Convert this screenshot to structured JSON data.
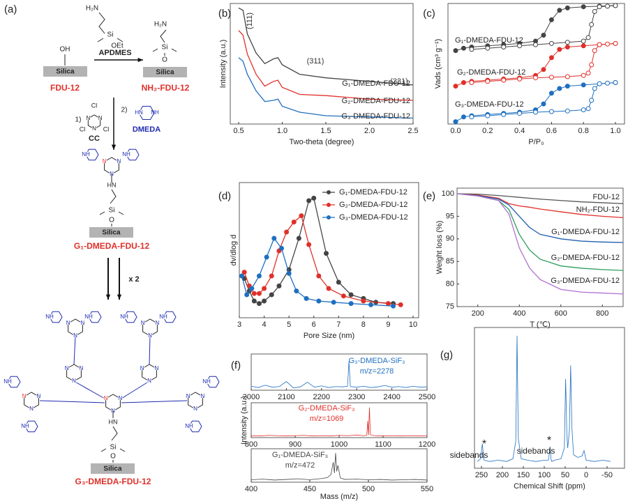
{
  "scheme": {
    "panel_label": "(a)",
    "silica": "Silica",
    "oh": "OH",
    "h2n": "H₂N",
    "si": "Si",
    "oet": "OEt",
    "o": "O",
    "apdmes": "APDMES",
    "fdu12": "FDU-12",
    "nh2_fdu12": "NH₂-FDU-12",
    "step1": "1)",
    "step2": "2)",
    "cl": "Cl",
    "n": "N",
    "cc": "CC",
    "hn": "HN",
    "nh": "NH",
    "dmeda": "DMEDA",
    "g1": "G₁-DMEDA-FDU-12",
    "times2": "x 2",
    "g3": "G₃-DMEDA-FDU-12"
  },
  "chart_data": [
    {
      "type": "line",
      "panel_label": "(b)",
      "xlabel": "Two-theta (degree)",
      "ylabel": "Intensity (a.u.)",
      "annotations": [
        "(111)",
        "(311)",
        "(331)"
      ],
      "x": [
        0.5,
        0.55,
        0.6,
        0.7,
        0.8,
        0.9,
        0.95,
        1.0,
        1.2,
        1.5,
        2.0,
        2.5
      ],
      "xlim": [
        0.5,
        2.5
      ],
      "ylim": [
        0,
        10
      ],
      "xticks": [
        0.5,
        {
          "value": 1,
          "label": "1.0"
        },
        1.5,
        {
          "value": 2,
          "label": "2.0"
        },
        2.5
      ],
      "series": [
        {
          "name": "G₁-DMEDA-FDU-12",
          "color": "#444444",
          "values": [
            9.8,
            9.6,
            7.6,
            6.0,
            5.1,
            5.5,
            5.6,
            5.0,
            4.2,
            3.9,
            3.6,
            3.3
          ]
        },
        {
          "name": "G₂-DMEDA-FDU-12",
          "color": "#e0302a",
          "values": [
            7.9,
            7.5,
            5.9,
            4.2,
            3.2,
            3.6,
            3.7,
            3.1,
            2.5,
            2.4,
            2.1,
            2.0
          ]
        },
        {
          "name": "G₃-DMEDA-FDU-12",
          "color": "#1f6fc0",
          "values": [
            5.6,
            5.3,
            4.2,
            2.8,
            1.9,
            2.0,
            2.1,
            1.5,
            1.0,
            0.7,
            0.6,
            0.5
          ]
        }
      ]
    },
    {
      "type": "isotherm",
      "panel_label": "(c)",
      "xlabel": "P/P₀",
      "ylabel": "Vads (cm³ g⁻¹)",
      "x": [
        0.0,
        0.05,
        0.1,
        0.2,
        0.3,
        0.4,
        0.5,
        0.55,
        0.6,
        0.65,
        0.7,
        0.8,
        0.9,
        1.0
      ],
      "desorption_x": [
        1.0,
        0.95,
        0.9,
        0.87,
        0.85,
        0.83,
        0.8,
        0.7,
        0.6,
        0.5,
        0.4,
        0.3,
        0.2,
        0.1
      ],
      "xlim": [
        0,
        1
      ],
      "ylim": [
        0,
        10
      ],
      "xticks": [
        {
          "value": 0,
          "label": "0.0"
        },
        0.2,
        0.4,
        0.6,
        0.8,
        {
          "value": 1,
          "label": "1.0"
        }
      ],
      "series": [
        {
          "name": "G₁-DMEDA-FDU-12",
          "color": "#444444",
          "values": [
            6.2,
            6.4,
            6.5,
            6.6,
            6.7,
            6.8,
            7.0,
            7.5,
            8.8,
            9.6,
            9.8,
            9.9,
            9.95,
            10.0
          ],
          "desorption_values": [
            10.0,
            9.95,
            9.9,
            9.5,
            8.4,
            7.3,
            7.0,
            6.9,
            6.8,
            6.7,
            6.6,
            6.5,
            6.4,
            6.3
          ]
        },
        {
          "name": "G₂-DMEDA-FDU-12",
          "color": "#e0302a",
          "values": [
            3.2,
            3.5,
            3.6,
            3.7,
            3.8,
            3.9,
            4.1,
            4.6,
            5.6,
            6.3,
            6.5,
            6.6,
            6.7,
            6.8
          ],
          "desorption_values": [
            6.8,
            6.75,
            6.7,
            6.2,
            5.0,
            4.3,
            4.1,
            4.0,
            3.95,
            3.9,
            3.8,
            3.7,
            3.6,
            3.5
          ]
        },
        {
          "name": "G₃-DMEDA-FDU-12",
          "color": "#1f6fc0",
          "values": [
            0.2,
            0.6,
            0.7,
            0.8,
            0.9,
            1.0,
            1.2,
            1.7,
            2.6,
            3.0,
            3.2,
            3.3,
            3.4,
            3.5
          ],
          "desorption_values": [
            3.5,
            3.45,
            3.4,
            3.0,
            2.0,
            1.3,
            1.2,
            1.1,
            1.05,
            1.0,
            0.9,
            0.8,
            0.7,
            0.6
          ]
        }
      ]
    },
    {
      "type": "line",
      "markers": true,
      "panel_label": "(d)",
      "xlabel": "Pore Size (nm)",
      "ylabel": "dv/dlog d",
      "xlim": [
        3,
        10
      ],
      "ylim": [
        0,
        10
      ],
      "xticks": [
        3,
        4,
        5,
        6,
        7,
        8,
        9,
        10
      ],
      "series": [
        {
          "name": "G₁-DMEDA-FDU-12",
          "color": "#444444",
          "x": [
            3.2,
            3.4,
            3.6,
            3.8,
            4.0,
            4.3,
            4.6,
            5.0,
            5.4,
            5.8,
            6.0,
            6.5,
            7.0,
            7.5,
            8.0,
            8.5,
            9.2
          ],
          "values": [
            2.8,
            1.8,
            1.0,
            0.8,
            1.0,
            1.5,
            2.2,
            3.5,
            6.0,
            9.0,
            9.2,
            4.8,
            2.5,
            1.5,
            1.2,
            0.9,
            0.8
          ]
        },
        {
          "name": "G₂-DMEDA-FDU-12",
          "color": "#e0302a",
          "x": [
            3.2,
            3.4,
            3.6,
            3.8,
            4.0,
            4.3,
            4.6,
            4.9,
            5.2,
            5.5,
            5.8,
            6.2,
            6.6,
            7.2,
            8.0,
            9.0,
            9.5
          ],
          "values": [
            3.3,
            2.2,
            1.6,
            1.6,
            2.0,
            3.0,
            5.0,
            6.5,
            7.3,
            7.8,
            5.5,
            3.0,
            2.0,
            1.4,
            1.0,
            0.8,
            0.7
          ]
        },
        {
          "name": "G₃-DMEDA-FDU-12",
          "color": "#1f6fc0",
          "x": [
            3.1,
            3.3,
            3.5,
            3.8,
            4.1,
            4.4,
            4.7,
            5.0,
            5.3,
            5.7,
            6.2,
            6.8,
            7.5,
            8.3,
            9.2
          ],
          "values": [
            3.0,
            1.5,
            2.0,
            3.0,
            4.5,
            6.0,
            5.2,
            3.2,
            1.8,
            1.2,
            1.0,
            0.9,
            0.8,
            0.7,
            0.6
          ]
        }
      ]
    },
    {
      "type": "line",
      "panel_label": "(e)",
      "xlabel": "T (℃)",
      "ylabel": "Weight loss (%)",
      "x": [
        100,
        200,
        300,
        350,
        400,
        450,
        500,
        600,
        700,
        800,
        900
      ],
      "xlim": [
        100,
        900
      ],
      "ylim": [
        75,
        100
      ],
      "xticks": [
        200,
        400,
        600,
        800
      ],
      "yticks": [
        75,
        80,
        85,
        90,
        95,
        100
      ],
      "series": [
        {
          "name": "FDU-12",
          "color": "#555555",
          "values": [
            100,
            99.9,
            99.6,
            99.4,
            99.2,
            99.0,
            98.8,
            98.5,
            98.2,
            98.0,
            97.8
          ]
        },
        {
          "name": "NH₂-FDU-12",
          "color": "#e0302a",
          "values": [
            100,
            99.7,
            99.0,
            97.8,
            97.3,
            97.0,
            96.6,
            96.0,
            95.4,
            95.0,
            94.7
          ]
        },
        {
          "name": "G₁-DMEDA-FDU-12",
          "color": "#1f5fb0",
          "values": [
            100,
            99.6,
            98.8,
            97.5,
            95.0,
            92.5,
            91.0,
            90.0,
            89.5,
            89.3,
            89.2
          ]
        },
        {
          "name": "G₂-DMEDA-FDU-12",
          "color": "#2a9d5c",
          "values": [
            100,
            99.5,
            98.5,
            96.5,
            91.0,
            87.5,
            85.5,
            84.0,
            83.5,
            83.2,
            83.0
          ]
        },
        {
          "name": "G₃-DMEDA-FDU-12",
          "color": "#b070d0",
          "values": [
            100,
            99.5,
            98.5,
            95.5,
            88.0,
            83.5,
            81.0,
            78.8,
            78.2,
            78.0,
            77.8
          ]
        }
      ]
    },
    {
      "type": "line",
      "panel_label": "(f)",
      "annotations": [
        "G₃-DMEDA-SiF₃",
        "m/z=2278"
      ],
      "x": [
        2000,
        2020,
        2040,
        2060,
        2080,
        2100,
        2120,
        2140,
        2160,
        2180,
        2200,
        2220,
        2240,
        2260,
        2274,
        2278,
        2282,
        2300,
        2320,
        2340,
        2360,
        2380,
        2400,
        2420,
        2440,
        2460,
        2480,
        2500
      ],
      "xlim": [
        2000,
        2500
      ],
      "ylim": [
        0,
        10
      ],
      "xticks": [
        2000,
        2100,
        2200,
        2300,
        2400,
        2500
      ],
      "series": [
        {
          "color": "#1f6fc0",
          "values": [
            1.2,
            0.8,
            1.5,
            0.9,
            1.1,
            2.6,
            0.7,
            1.0,
            2.4,
            0.9,
            1.3,
            0.8,
            1.1,
            1.0,
            1.2,
            8.6,
            1.1,
            0.9,
            1.2,
            0.8,
            1.0,
            1.4,
            0.9,
            1.1,
            0.8,
            1.2,
            0.9,
            1.0
          ]
        }
      ]
    },
    {
      "type": "line",
      "ylabel": "Intensity (a.u.)",
      "annotations": [
        "G₂-DMEDA-SiF₃",
        "m/z=1069"
      ],
      "x": [
        800,
        820,
        840,
        860,
        880,
        900,
        920,
        940,
        960,
        980,
        1000,
        1020,
        1040,
        1055,
        1063,
        1065,
        1067,
        1069,
        1071,
        1080,
        1100,
        1120,
        1140,
        1160,
        1180,
        1200
      ],
      "xlim": [
        800,
        1200
      ],
      "ylim": [
        0,
        10
      ],
      "xticks": [
        800,
        900,
        1000,
        1100,
        1200
      ],
      "series": [
        {
          "color": "#e0302a",
          "values": [
            0.6,
            0.5,
            0.7,
            0.6,
            0.5,
            0.6,
            0.7,
            0.5,
            0.6,
            0.5,
            0.7,
            0.6,
            0.8,
            0.6,
            0.7,
            5.2,
            0.8,
            9.4,
            0.9,
            0.6,
            0.5,
            0.6,
            0.5,
            0.6,
            0.5,
            0.6
          ]
        }
      ]
    },
    {
      "type": "line",
      "xlabel": "Mass (m/z)",
      "annotations": [
        "G₁-DMEDA-SiF₃",
        "m/z=472"
      ],
      "x": [
        400,
        410,
        420,
        430,
        440,
        450,
        460,
        465,
        468,
        470,
        471,
        472,
        473,
        474,
        476,
        480,
        490,
        500,
        510,
        520,
        530,
        540,
        550
      ],
      "xlim": [
        400,
        550
      ],
      "ylim": [
        0,
        10
      ],
      "xticks": [
        400,
        450,
        500,
        550
      ],
      "series": [
        {
          "color": "#444444",
          "values": [
            0.8,
            1.0,
            0.7,
            0.9,
            1.1,
            0.8,
            1.2,
            1.5,
            2.5,
            6.5,
            3.0,
            9.5,
            3.5,
            5.5,
            1.4,
            0.9,
            1.0,
            0.8,
            0.9,
            0.7,
            0.8,
            0.9,
            0.7
          ]
        }
      ]
    },
    {
      "type": "line",
      "panel_label": "(g)",
      "xlabel": "Chemical Shift (ppm)",
      "annotations": [
        "sidebands",
        "*",
        "sidebands",
        "*"
      ],
      "x": [
        260,
        252,
        248,
        244,
        230,
        210,
        190,
        175,
        168,
        165,
        162,
        155,
        140,
        120,
        100,
        90,
        86,
        84,
        82,
        75,
        60,
        52,
        49,
        46,
        44,
        40,
        37,
        34,
        30,
        20,
        10,
        5,
        0,
        -20,
        -40,
        -58
      ],
      "xlim": [
        250,
        -50
      ],
      "ylim": [
        0,
        10
      ],
      "xticks": [
        250,
        200,
        150,
        100,
        50,
        0,
        -50
      ],
      "series": [
        {
          "color": "#1f6fc0",
          "values": [
            0.5,
            0.7,
            1.8,
            0.6,
            0.5,
            0.6,
            0.5,
            0.7,
            2.0,
            9.8,
            2.2,
            0.7,
            0.6,
            0.5,
            0.6,
            0.6,
            1.6,
            0.7,
            0.5,
            0.6,
            0.7,
            1.5,
            6.6,
            2.5,
            1.5,
            2.8,
            7.6,
            3.0,
            1.0,
            0.8,
            0.9,
            1.3,
            0.6,
            0.5,
            0.6,
            0.5
          ]
        }
      ]
    }
  ]
}
